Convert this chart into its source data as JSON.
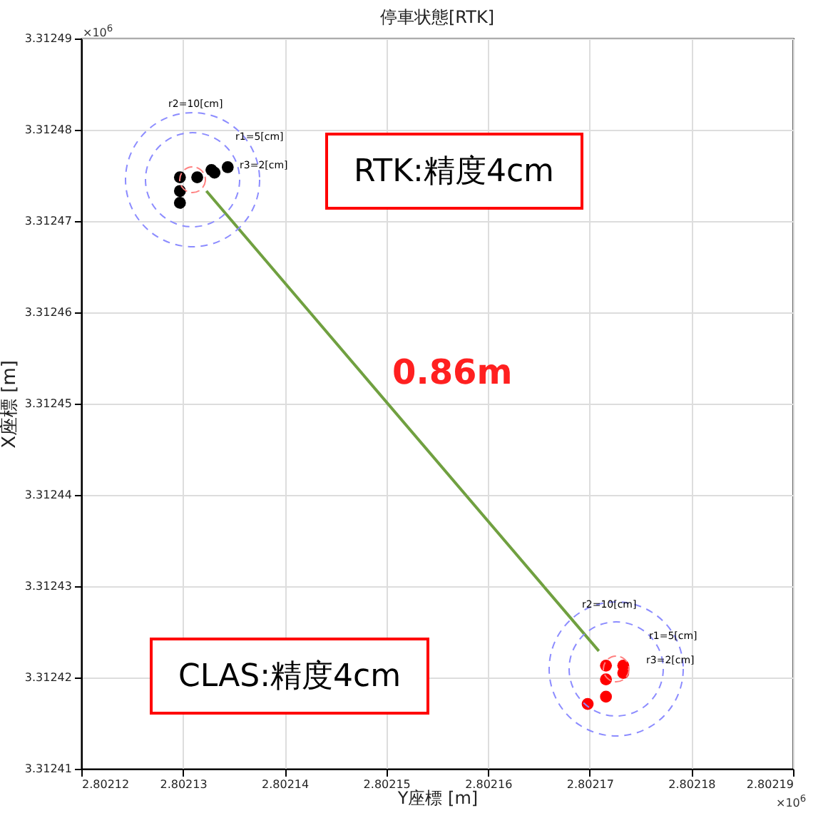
{
  "chart_data": {
    "type": "scatter",
    "title": "停車状態[RTK]",
    "xlabel": "Y座標 [m]",
    "ylabel": "X座標 [m]",
    "xlim": [
      2.80212,
      2.80219
    ],
    "xticks": [
      2.80212,
      2.80213,
      2.80214,
      2.80215,
      2.80216,
      2.80217,
      2.80218,
      2.80219
    ],
    "ylim": [
      3.31241,
      3.31249
    ],
    "yticks": [
      3.31241,
      3.31242,
      3.31243,
      3.31244,
      3.31245,
      3.31246,
      3.31247,
      3.31248,
      3.31249
    ],
    "grid": true,
    "series": [
      {
        "type": "scatter",
        "color": "#000000",
        "x": [
          2.8021297,
          2.8021297,
          2.8021297,
          2.8021314,
          2.8021328,
          2.8021331,
          2.8021344
        ],
        "values": [
          3.3124748,
          3.3124733,
          3.312472,
          3.3124748,
          3.3124756,
          3.3124753,
          3.3124759
        ]
      },
      {
        "type": "scatter",
        "color": "#ff0000",
        "x": [
          2.8021716,
          2.8021716,
          2.8021716,
          2.8021733,
          2.8021733,
          2.8021698
        ],
        "values": [
          3.3124213,
          3.3124198,
          3.3124179,
          3.3124213,
          3.3124205,
          3.3124171
        ]
      },
      {
        "type": "line",
        "color": "#70a040",
        "line_style": "solid",
        "x": [
          2.8021323,
          2.8021709
        ],
        "values": [
          3.3124733,
          3.3124229
        ]
      }
    ],
    "annotations": [
      "0.86m",
      "r2=10[cm]",
      "r1=5[cm]",
      "r3=2[cm]",
      "r2=10[cm]",
      "r1=5[cm]",
      "r3=2[cm]",
      "RTK:精度4cm",
      "CLAS:精度4cm",
      "×10$^{6}$",
      "×10$^{6}$"
    ]
  }
}
